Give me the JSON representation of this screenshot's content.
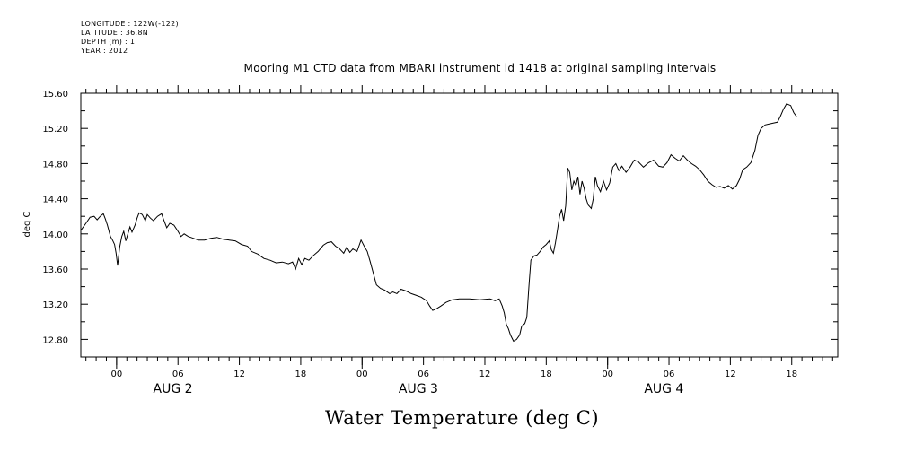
{
  "metadata": {
    "longitude": "LONGITUDE : 122W(-122)",
    "latitude": "LATITUDE : 36.8N",
    "depth": "DEPTH (m) : 1",
    "year": "YEAR : 2012"
  },
  "chart_data": {
    "type": "line",
    "title": "Mooring M1 CTD data from MBARI instrument id 1418 at original sampling intervals",
    "bottom_title": "Water Temperature (deg C)",
    "ylabel": "deg C",
    "xlabel": "",
    "ylim": [
      12.6,
      15.6
    ],
    "xlim_hours": [
      -3.5,
      70.5
    ],
    "y_ticks": [
      "12.80",
      "13.20",
      "13.60",
      "14.00",
      "14.40",
      "14.80",
      "15.20",
      "15.60"
    ],
    "x_ticks": [
      "00",
      "06",
      "12",
      "18",
      "00",
      "06",
      "12",
      "18",
      "00",
      "06",
      "12",
      "18"
    ],
    "date_labels": [
      "AUG  2",
      "AUG  3",
      "AUG  4"
    ],
    "grid": false,
    "series": [
      {
        "points": [
          [
            -3.5,
            14.04
          ],
          [
            -3.0,
            14.12
          ],
          [
            -2.6,
            14.19
          ],
          [
            -2.2,
            14.2
          ],
          [
            -1.9,
            14.16
          ],
          [
            -1.6,
            14.2
          ],
          [
            -1.3,
            14.23
          ],
          [
            -1.1,
            14.17
          ],
          [
            -0.9,
            14.1
          ],
          [
            -0.6,
            13.97
          ],
          [
            -0.4,
            13.93
          ],
          [
            -0.2,
            13.88
          ],
          [
            -0.05,
            13.78
          ],
          [
            0.1,
            13.64
          ],
          [
            0.3,
            13.85
          ],
          [
            0.5,
            13.97
          ],
          [
            0.7,
            14.03
          ],
          [
            0.9,
            13.92
          ],
          [
            1.1,
            14.0
          ],
          [
            1.3,
            14.08
          ],
          [
            1.5,
            14.02
          ],
          [
            1.8,
            14.1
          ],
          [
            2.0,
            14.18
          ],
          [
            2.2,
            14.24
          ],
          [
            2.5,
            14.22
          ],
          [
            2.8,
            14.15
          ],
          [
            3.0,
            14.22
          ],
          [
            3.3,
            14.18
          ],
          [
            3.6,
            14.15
          ],
          [
            4.0,
            14.2
          ],
          [
            4.4,
            14.23
          ],
          [
            4.6,
            14.16
          ],
          [
            4.9,
            14.07
          ],
          [
            5.2,
            14.12
          ],
          [
            5.6,
            14.1
          ],
          [
            6.0,
            14.03
          ],
          [
            6.3,
            13.97
          ],
          [
            6.6,
            14.0
          ],
          [
            7.0,
            13.97
          ],
          [
            7.5,
            13.95
          ],
          [
            8.0,
            13.93
          ],
          [
            8.6,
            13.93
          ],
          [
            9.2,
            13.95
          ],
          [
            9.8,
            13.96
          ],
          [
            10.4,
            13.94
          ],
          [
            11.0,
            13.93
          ],
          [
            11.6,
            13.92
          ],
          [
            12.2,
            13.88
          ],
          [
            12.8,
            13.86
          ],
          [
            13.2,
            13.8
          ],
          [
            13.8,
            13.77
          ],
          [
            14.4,
            13.72
          ],
          [
            15.0,
            13.7
          ],
          [
            15.6,
            13.67
          ],
          [
            16.2,
            13.68
          ],
          [
            16.8,
            13.66
          ],
          [
            17.2,
            13.68
          ],
          [
            17.5,
            13.6
          ],
          [
            17.8,
            13.72
          ],
          [
            18.1,
            13.65
          ],
          [
            18.4,
            13.72
          ],
          [
            18.8,
            13.7
          ],
          [
            19.2,
            13.75
          ],
          [
            19.7,
            13.8
          ],
          [
            20.2,
            13.87
          ],
          [
            20.6,
            13.9
          ],
          [
            21.0,
            13.91
          ],
          [
            21.4,
            13.86
          ],
          [
            21.8,
            13.83
          ],
          [
            22.2,
            13.78
          ],
          [
            22.5,
            13.85
          ],
          [
            22.8,
            13.79
          ],
          [
            23.1,
            13.83
          ],
          [
            23.5,
            13.8
          ],
          [
            23.9,
            13.93
          ],
          [
            24.2,
            13.86
          ],
          [
            24.5,
            13.8
          ],
          [
            24.8,
            13.68
          ],
          [
            25.1,
            13.55
          ],
          [
            25.4,
            13.42
          ],
          [
            25.8,
            13.38
          ],
          [
            26.2,
            13.36
          ],
          [
            26.7,
            13.32
          ],
          [
            27.0,
            13.34
          ],
          [
            27.4,
            13.32
          ],
          [
            27.8,
            13.37
          ],
          [
            28.3,
            13.35
          ],
          [
            28.8,
            13.32
          ],
          [
            29.3,
            13.3
          ],
          [
            29.8,
            13.28
          ],
          [
            30.3,
            13.24
          ],
          [
            30.6,
            13.18
          ],
          [
            30.9,
            13.13
          ],
          [
            31.3,
            13.15
          ],
          [
            31.7,
            13.18
          ],
          [
            32.2,
            13.22
          ],
          [
            32.8,
            13.25
          ],
          [
            33.5,
            13.26
          ],
          [
            34.5,
            13.26
          ],
          [
            35.5,
            13.25
          ],
          [
            36.5,
            13.26
          ],
          [
            37.0,
            13.24
          ],
          [
            37.4,
            13.26
          ],
          [
            37.7,
            13.18
          ],
          [
            37.9,
            13.1
          ],
          [
            38.1,
            12.97
          ],
          [
            38.3,
            12.92
          ],
          [
            38.5,
            12.85
          ],
          [
            38.8,
            12.78
          ],
          [
            39.1,
            12.8
          ],
          [
            39.4,
            12.85
          ],
          [
            39.6,
            12.95
          ],
          [
            39.9,
            12.98
          ],
          [
            40.1,
            13.05
          ],
          [
            40.3,
            13.4
          ],
          [
            40.5,
            13.7
          ],
          [
            40.8,
            13.75
          ],
          [
            41.1,
            13.76
          ],
          [
            41.4,
            13.8
          ],
          [
            41.7,
            13.85
          ],
          [
            42.0,
            13.88
          ],
          [
            42.3,
            13.92
          ],
          [
            42.5,
            13.82
          ],
          [
            42.7,
            13.78
          ],
          [
            42.9,
            13.9
          ],
          [
            43.1,
            14.05
          ],
          [
            43.3,
            14.2
          ],
          [
            43.5,
            14.28
          ],
          [
            43.7,
            14.15
          ],
          [
            43.9,
            14.32
          ],
          [
            44.1,
            14.75
          ],
          [
            44.3,
            14.7
          ],
          [
            44.5,
            14.5
          ],
          [
            44.7,
            14.6
          ],
          [
            44.9,
            14.55
          ],
          [
            45.1,
            14.65
          ],
          [
            45.3,
            14.45
          ],
          [
            45.5,
            14.6
          ],
          [
            45.7,
            14.52
          ],
          [
            45.9,
            14.4
          ],
          [
            46.1,
            14.33
          ],
          [
            46.4,
            14.29
          ],
          [
            46.6,
            14.4
          ],
          [
            46.8,
            14.65
          ],
          [
            47.0,
            14.55
          ],
          [
            47.3,
            14.48
          ],
          [
            47.6,
            14.6
          ],
          [
            47.9,
            14.5
          ],
          [
            48.2,
            14.58
          ],
          [
            48.5,
            14.76
          ],
          [
            48.8,
            14.8
          ],
          [
            49.1,
            14.72
          ],
          [
            49.4,
            14.77
          ],
          [
            49.8,
            14.7
          ],
          [
            50.2,
            14.76
          ],
          [
            50.6,
            14.84
          ],
          [
            51.0,
            14.82
          ],
          [
            51.5,
            14.76
          ],
          [
            52.0,
            14.81
          ],
          [
            52.5,
            14.84
          ],
          [
            53.0,
            14.77
          ],
          [
            53.4,
            14.76
          ],
          [
            53.8,
            14.81
          ],
          [
            54.2,
            14.9
          ],
          [
            54.6,
            14.86
          ],
          [
            55.0,
            14.83
          ],
          [
            55.4,
            14.89
          ],
          [
            55.8,
            14.84
          ],
          [
            56.2,
            14.8
          ],
          [
            56.6,
            14.77
          ],
          [
            57.0,
            14.73
          ],
          [
            57.4,
            14.67
          ],
          [
            57.8,
            14.6
          ],
          [
            58.2,
            14.56
          ],
          [
            58.6,
            14.53
          ],
          [
            59.0,
            14.54
          ],
          [
            59.4,
            14.52
          ],
          [
            59.8,
            14.55
          ],
          [
            60.2,
            14.51
          ],
          [
            60.6,
            14.55
          ],
          [
            60.9,
            14.62
          ],
          [
            61.2,
            14.73
          ],
          [
            61.6,
            14.76
          ],
          [
            62.0,
            14.81
          ],
          [
            62.4,
            14.95
          ],
          [
            62.7,
            15.12
          ],
          [
            63.0,
            15.2
          ],
          [
            63.4,
            15.24
          ],
          [
            63.8,
            15.25
          ],
          [
            64.2,
            15.26
          ],
          [
            64.6,
            15.27
          ],
          [
            64.9,
            15.34
          ],
          [
            65.2,
            15.42
          ],
          [
            65.5,
            15.48
          ],
          [
            65.9,
            15.46
          ],
          [
            66.2,
            15.38
          ],
          [
            66.5,
            15.33
          ]
        ]
      }
    ]
  }
}
